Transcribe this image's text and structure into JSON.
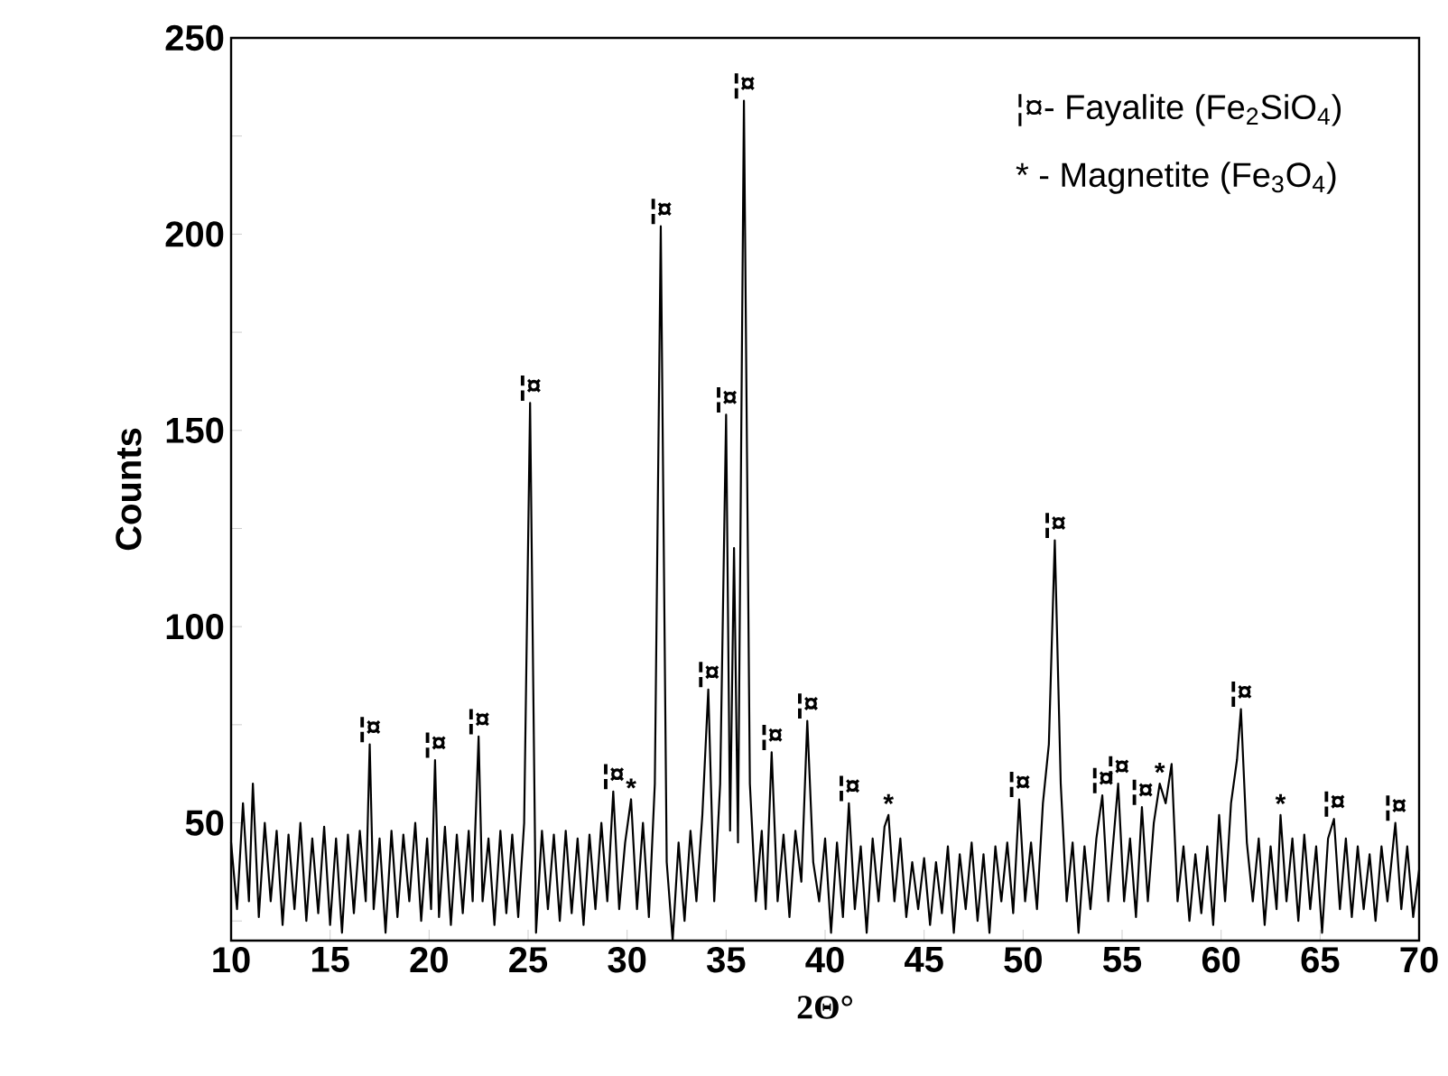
{
  "chart_data": {
    "type": "line",
    "xlabel": "2Θ°",
    "ylabel": "Counts",
    "xlim": [
      10,
      70
    ],
    "xticks": [
      10,
      15,
      20,
      25,
      30,
      35,
      40,
      45,
      50,
      55,
      60,
      65,
      70
    ],
    "ylim": [
      20,
      250
    ],
    "yticks": [
      {
        "value": 25,
        "label": null
      },
      50,
      {
        "value": 75,
        "label": null
      },
      100,
      {
        "value": 125,
        "label": null
      },
      150,
      {
        "value": 175,
        "label": null
      },
      200,
      {
        "value": 225,
        "label": null
      },
      250
    ],
    "series": [
      {
        "color": "#000000",
        "x": [
          10.0,
          10.3,
          10.6,
          10.9,
          11.1,
          11.4,
          11.7,
          12.0,
          12.3,
          12.6,
          12.9,
          13.2,
          13.5,
          13.8,
          14.1,
          14.4,
          14.7,
          15.0,
          15.3,
          15.6,
          15.9,
          16.2,
          16.5,
          16.8,
          17.0,
          17.2,
          17.5,
          17.8,
          18.1,
          18.4,
          18.7,
          19.0,
          19.3,
          19.6,
          19.9,
          20.1,
          20.3,
          20.5,
          20.8,
          21.1,
          21.4,
          21.7,
          22.0,
          22.2,
          22.5,
          22.7,
          23.0,
          23.3,
          23.6,
          23.9,
          24.2,
          24.5,
          24.8,
          25.1,
          25.4,
          25.7,
          26.0,
          26.3,
          26.6,
          26.9,
          27.2,
          27.5,
          27.8,
          28.1,
          28.4,
          28.7,
          29.0,
          29.3,
          29.6,
          29.9,
          30.2,
          30.5,
          30.8,
          31.1,
          31.4,
          31.7,
          32.0,
          32.3,
          32.6,
          32.9,
          33.2,
          33.5,
          33.8,
          34.1,
          34.4,
          34.7,
          35.0,
          35.2,
          35.4,
          35.6,
          35.9,
          36.2,
          36.5,
          36.8,
          37.0,
          37.3,
          37.6,
          37.9,
          38.2,
          38.5,
          38.8,
          39.1,
          39.4,
          39.7,
          40.0,
          40.3,
          40.6,
          40.9,
          41.2,
          41.5,
          41.8,
          42.1,
          42.4,
          42.7,
          43.0,
          43.2,
          43.5,
          43.8,
          44.1,
          44.4,
          44.7,
          45.0,
          45.3,
          45.6,
          45.9,
          46.2,
          46.5,
          46.8,
          47.1,
          47.4,
          47.7,
          48.0,
          48.3,
          48.6,
          48.9,
          49.2,
          49.5,
          49.8,
          50.1,
          50.4,
          50.7,
          51.0,
          51.3,
          51.6,
          51.9,
          52.2,
          52.5,
          52.8,
          53.1,
          53.4,
          53.7,
          54.0,
          54.3,
          54.6,
          54.8,
          55.1,
          55.4,
          55.7,
          56.0,
          56.3,
          56.6,
          56.9,
          57.2,
          57.5,
          57.8,
          58.1,
          58.4,
          58.7,
          59.0,
          59.3,
          59.6,
          59.9,
          60.2,
          60.5,
          60.8,
          61.0,
          61.3,
          61.6,
          61.9,
          62.2,
          62.5,
          62.8,
          63.0,
          63.3,
          63.6,
          63.9,
          64.2,
          64.5,
          64.8,
          65.1,
          65.4,
          65.7,
          66.0,
          66.3,
          66.6,
          66.9,
          67.2,
          67.5,
          67.8,
          68.1,
          68.4,
          68.8,
          69.1,
          69.4,
          69.7,
          70.0
        ],
        "values": [
          45,
          28,
          55,
          30,
          60,
          26,
          50,
          30,
          48,
          24,
          47,
          28,
          50,
          25,
          46,
          27,
          49,
          24,
          46,
          22,
          47,
          27,
          48,
          30,
          70,
          28,
          46,
          22,
          48,
          26,
          47,
          30,
          50,
          25,
          46,
          28,
          66,
          26,
          49,
          24,
          47,
          27,
          48,
          30,
          72,
          30,
          46,
          24,
          48,
          27,
          47,
          26,
          50,
          157,
          22,
          48,
          28,
          47,
          25,
          48,
          27,
          46,
          24,
          47,
          28,
          50,
          30,
          58,
          28,
          45,
          56,
          28,
          50,
          26,
          60,
          202,
          40,
          20,
          45,
          25,
          48,
          30,
          52,
          84,
          30,
          60,
          154,
          48,
          120,
          45,
          234,
          60,
          30,
          48,
          28,
          68,
          30,
          47,
          26,
          48,
          35,
          76,
          40,
          30,
          46,
          22,
          45,
          26,
          55,
          28,
          44,
          22,
          46,
          30,
          49,
          52,
          30,
          46,
          26,
          40,
          28,
          41,
          24,
          40,
          27,
          44,
          22,
          42,
          28,
          45,
          25,
          42,
          22,
          44,
          30,
          45,
          27,
          56,
          30,
          45,
          28,
          55,
          70,
          122,
          60,
          30,
          45,
          22,
          44,
          28,
          46,
          57,
          30,
          48,
          60,
          30,
          46,
          26,
          54,
          30,
          50,
          60,
          55,
          65,
          30,
          44,
          25,
          42,
          27,
          44,
          24,
          52,
          30,
          55,
          66,
          79,
          45,
          30,
          46,
          24,
          44,
          28,
          52,
          30,
          46,
          25,
          47,
          28,
          44,
          22,
          46,
          51,
          28,
          46,
          26,
          44,
          28,
          42,
          25,
          44,
          30,
          50,
          28,
          44,
          26,
          38
        ]
      }
    ],
    "annotations": [
      "¦¤- Fayalite (Fe$_{2}$SiO$_{4}$)",
      "* - Magnetite (Fe$_{3}$O$_{4}$)",
      {
        "text": "¦¤",
        "x": 17.0,
        "y": 70
      },
      {
        "text": "¦¤",
        "x": 20.3,
        "y": 66
      },
      {
        "text": "¦¤",
        "x": 22.5,
        "y": 72
      },
      {
        "text": "¦¤",
        "x": 25.1,
        "y": 157
      },
      {
        "text": "¦¤",
        "x": 29.3,
        "y": 58
      },
      {
        "text": "*",
        "x": 30.2,
        "y": 56
      },
      {
        "text": "¦¤",
        "x": 31.7,
        "y": 202
      },
      {
        "text": "¦¤",
        "x": 34.1,
        "y": 84
      },
      {
        "text": "¦¤",
        "x": 35.0,
        "y": 154
      },
      {
        "text": "¦¤",
        "x": 35.9,
        "y": 234
      },
      {
        "text": "¦¤",
        "x": 37.3,
        "y": 68
      },
      {
        "text": "¦¤",
        "x": 39.1,
        "y": 76
      },
      {
        "text": "¦¤",
        "x": 41.2,
        "y": 55
      },
      {
        "text": "*",
        "x": 43.2,
        "y": 52
      },
      {
        "text": "¦¤",
        "x": 49.8,
        "y": 56
      },
      {
        "text": "¦¤",
        "x": 51.6,
        "y": 122
      },
      {
        "text": "¦¤",
        "x": 54.0,
        "y": 57
      },
      {
        "text": "¦¤",
        "x": 54.8,
        "y": 60
      },
      {
        "text": "¦¤",
        "x": 56.0,
        "y": 54
      },
      {
        "text": "*",
        "x": 56.9,
        "y": 60
      },
      {
        "text": "¦¤",
        "x": 61.0,
        "y": 79
      },
      {
        "text": "*",
        "x": 63.0,
        "y": 52
      },
      {
        "text": "¦¤",
        "x": 65.7,
        "y": 51
      },
      {
        "text": "¦¤",
        "x": 68.8,
        "y": 50
      }
    ]
  }
}
